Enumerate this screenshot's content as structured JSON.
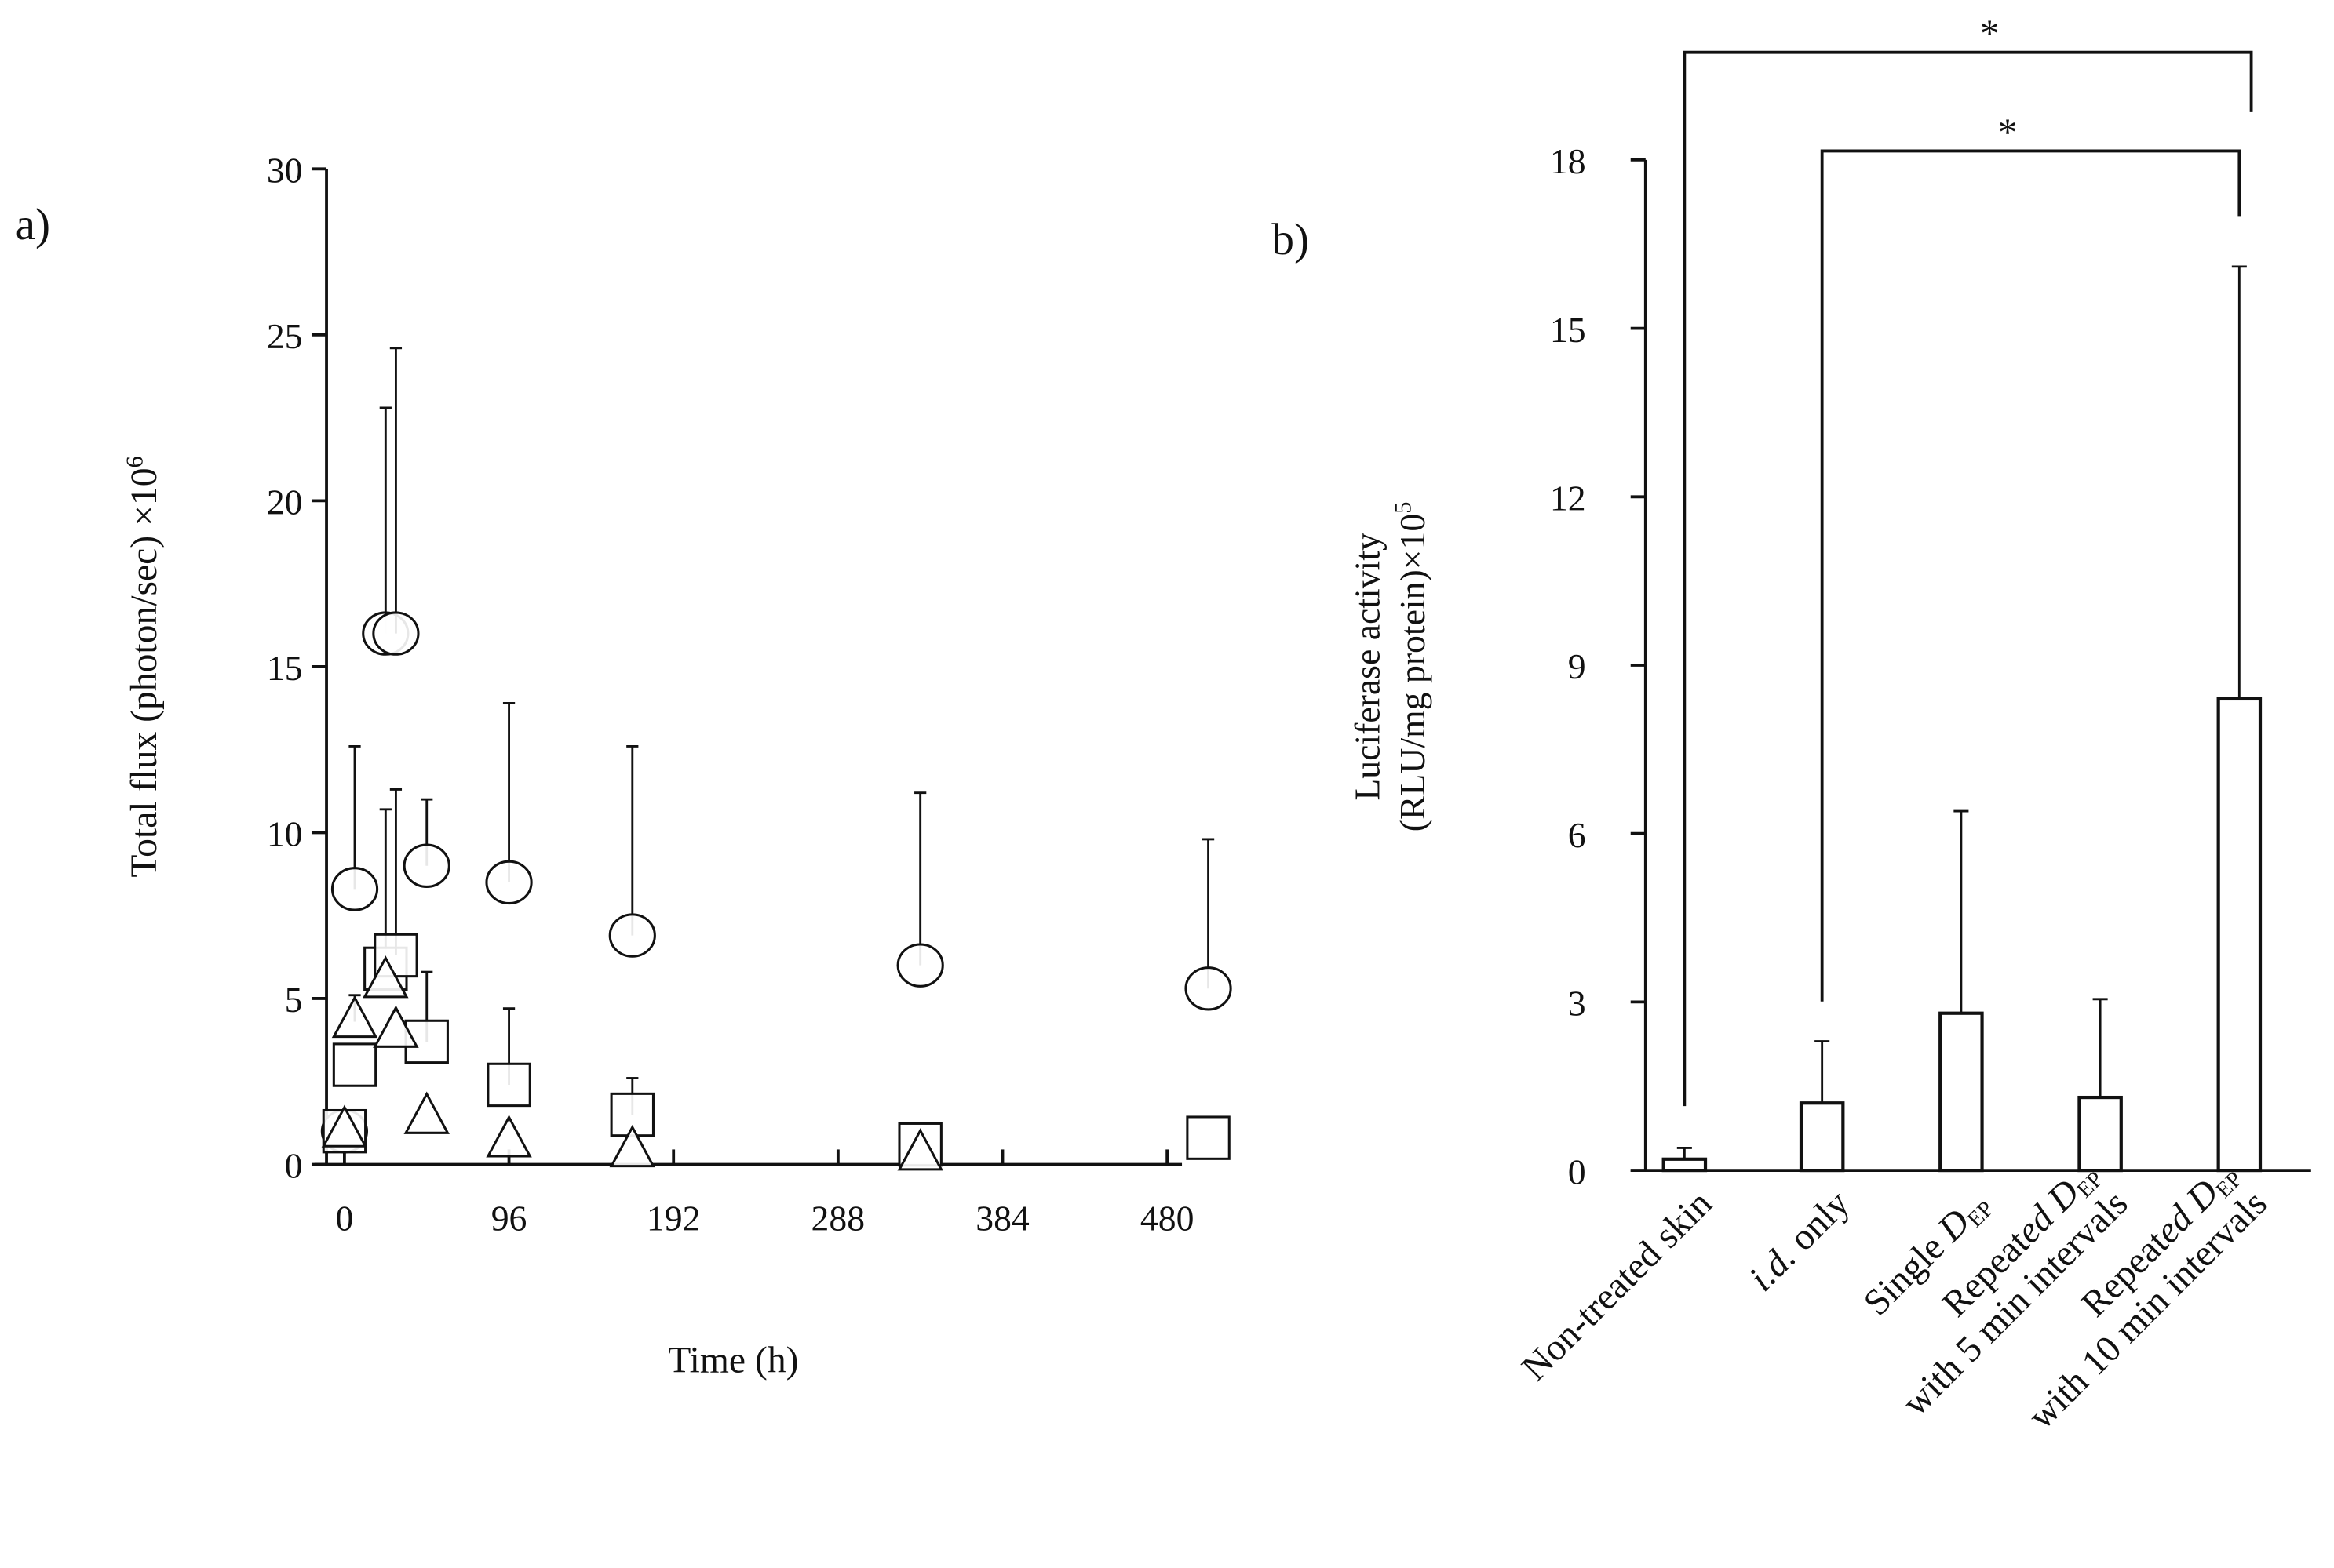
{
  "chart_data": [
    {
      "panel_label": "a)",
      "type": "scatter",
      "xlabel": "Time (h)",
      "ylabel": "Total flux (photon/sec) ×10",
      "ylabel_sup": "6",
      "xlim": [
        0,
        504
      ],
      "ylim": [
        0,
        30
      ],
      "xticks": [
        "0",
        "96",
        "192",
        "288",
        "384",
        "480"
      ],
      "yticks": [
        "0",
        "5",
        "10",
        "15",
        "20",
        "25",
        "30"
      ],
      "series": [
        {
          "name": "circle",
          "marker": "circle",
          "x": [
            0,
            6,
            24,
            30,
            48,
            96,
            168,
            336,
            504
          ],
          "y": [
            1.0,
            8.3,
            16.0,
            16.0,
            9.0,
            8.5,
            6.9,
            6.0,
            5.3
          ],
          "err_upper": [
            null,
            12.6,
            22.8,
            24.6,
            11.0,
            13.9,
            12.6,
            11.2,
            9.8
          ]
        },
        {
          "name": "square",
          "marker": "square",
          "x": [
            0,
            6,
            24,
            30,
            48,
            96,
            168,
            336,
            504
          ],
          "y": [
            1.0,
            3.0,
            5.9,
            6.3,
            3.7,
            2.4,
            1.5,
            0.6,
            0.8
          ],
          "err_upper": [
            null,
            null,
            10.7,
            11.3,
            5.8,
            4.7,
            2.6,
            null,
            null
          ]
        },
        {
          "name": "triangle",
          "marker": "triangle",
          "x": [
            0,
            6,
            24,
            30,
            48,
            96,
            168,
            336
          ],
          "y": [
            1.0,
            4.3,
            5.5,
            4.0,
            1.4,
            0.7,
            0.4,
            0.3
          ],
          "err_upper": [
            null,
            5.1,
            null,
            null,
            null,
            null,
            null,
            null
          ]
        }
      ]
    },
    {
      "panel_label": "b)",
      "type": "bar",
      "ylabel_line1": "Luciferase  activity",
      "ylabel_line2": "(RLU/mg protein)×10",
      "ylabel_sup": "5",
      "ylim": [
        0,
        18
      ],
      "yticks": [
        "0",
        "3",
        "6",
        "9",
        "12",
        "15",
        "18"
      ],
      "categories": [
        {
          "lines": [
            "Non-treated skin"
          ]
        },
        {
          "lines": [
            "i.d. only"
          ]
        },
        {
          "lines": [
            "Single D_EP"
          ]
        },
        {
          "lines": [
            "Repeated D_EP",
            "with 5 min intervals"
          ]
        },
        {
          "lines": [
            "Repeated D_EP",
            "with 10 min intervals"
          ]
        }
      ],
      "values": [
        0.2,
        1.2,
        2.8,
        1.3,
        8.4
      ],
      "err_upper": [
        0.4,
        2.3,
        6.4,
        3.05,
        16.1
      ],
      "significance": [
        {
          "from": 0,
          "to": 4,
          "label": "*"
        },
        {
          "from": 1,
          "to": 4,
          "label": "*"
        }
      ]
    }
  ]
}
